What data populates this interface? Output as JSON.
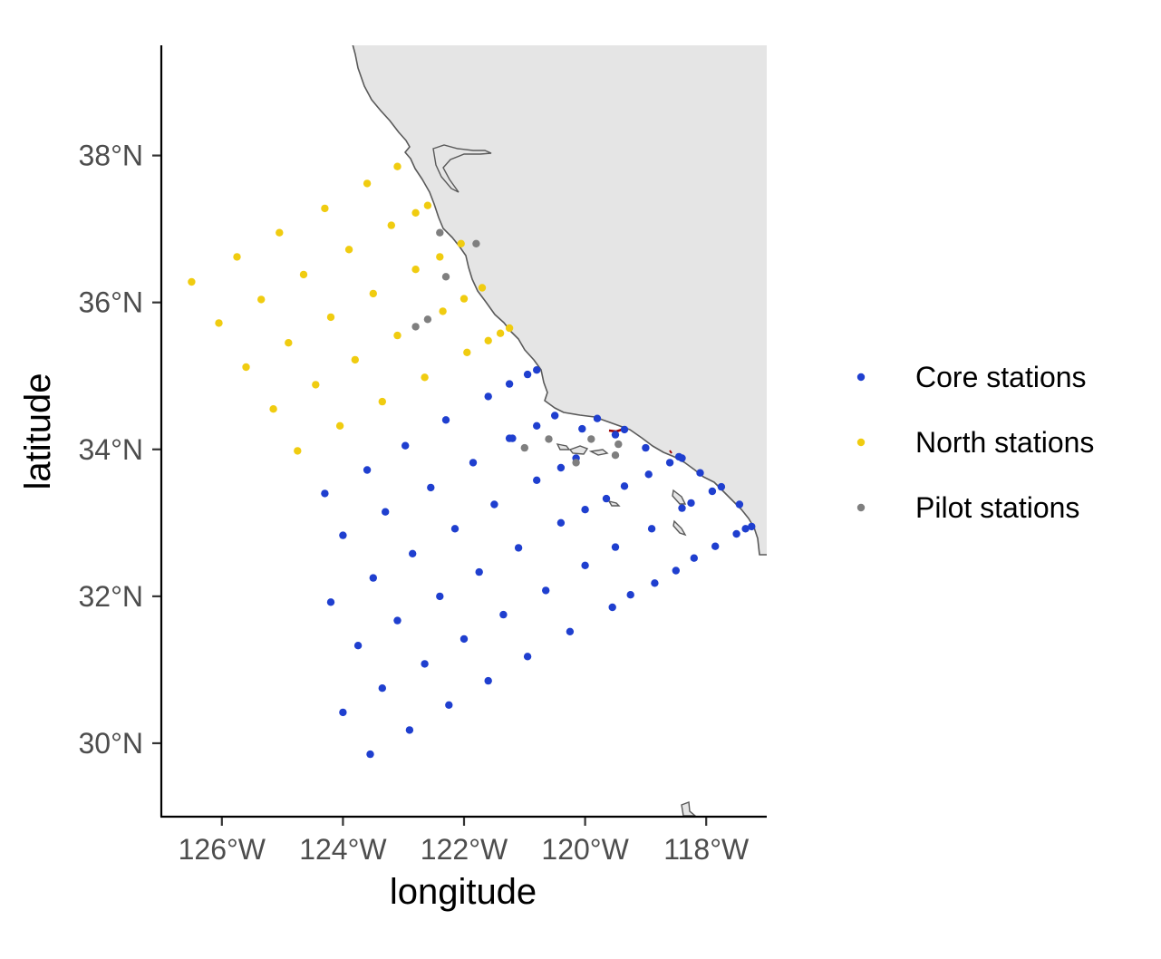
{
  "chart_data": {
    "type": "scatter",
    "xlabel": "longitude",
    "ylabel": "latitude",
    "xlim": [
      -127.0,
      -117.0
    ],
    "ylim": [
      29.0,
      39.5
    ],
    "x_ticks": [
      {
        "value": -126,
        "label": "126°W"
      },
      {
        "value": -124,
        "label": "124°W"
      },
      {
        "value": -122,
        "label": "122°W"
      },
      {
        "value": -120,
        "label": "120°W"
      },
      {
        "value": -118,
        "label": "118°W"
      }
    ],
    "y_ticks": [
      {
        "value": 30,
        "label": "30°N"
      },
      {
        "value": 32,
        "label": "32°N"
      },
      {
        "value": 34,
        "label": "34°N"
      },
      {
        "value": 36,
        "label": "36°N"
      },
      {
        "value": 38,
        "label": "38°N"
      }
    ],
    "grid": false,
    "legend_position": "right",
    "land_color": "#e5e5e5",
    "coast_color": "#595959",
    "series": [
      {
        "name": "Core stations",
        "color": "#1f3fcf",
        "points": [
          [
            -120.8,
            35.08
          ],
          [
            -120.95,
            35.02
          ],
          [
            -121.25,
            34.89
          ],
          [
            -121.6,
            34.72
          ],
          [
            -122.3,
            34.4
          ],
          [
            -122.97,
            34.05
          ],
          [
            -123.6,
            33.72
          ],
          [
            -124.3,
            33.4
          ],
          [
            -124.0,
            32.83
          ],
          [
            -123.3,
            33.15
          ],
          [
            -122.55,
            33.48
          ],
          [
            -121.85,
            33.82
          ],
          [
            -121.2,
            34.15
          ],
          [
            -120.8,
            34.32
          ],
          [
            -120.5,
            34.46
          ],
          [
            -120.8,
            33.58
          ],
          [
            -121.5,
            33.25
          ],
          [
            -122.15,
            32.92
          ],
          [
            -122.85,
            32.58
          ],
          [
            -123.5,
            32.25
          ],
          [
            -124.2,
            31.92
          ],
          [
            -123.75,
            31.33
          ],
          [
            -123.1,
            31.67
          ],
          [
            -122.4,
            32.0
          ],
          [
            -121.75,
            32.33
          ],
          [
            -121.1,
            32.66
          ],
          [
            -120.4,
            33.0
          ],
          [
            -120.0,
            33.18
          ],
          [
            -119.65,
            33.33
          ],
          [
            -119.35,
            33.5
          ],
          [
            -118.95,
            33.66
          ],
          [
            -118.6,
            33.82
          ],
          [
            -118.45,
            33.9
          ],
          [
            -118.9,
            32.92
          ],
          [
            -119.5,
            32.67
          ],
          [
            -120.0,
            32.42
          ],
          [
            -120.65,
            32.08
          ],
          [
            -121.35,
            31.75
          ],
          [
            -122.0,
            31.42
          ],
          [
            -122.65,
            31.08
          ],
          [
            -123.35,
            30.75
          ],
          [
            -124.0,
            30.42
          ],
          [
            -123.55,
            29.85
          ],
          [
            -122.9,
            30.18
          ],
          [
            -122.25,
            30.52
          ],
          [
            -121.6,
            30.85
          ],
          [
            -120.95,
            31.18
          ],
          [
            -120.25,
            31.52
          ],
          [
            -119.55,
            31.85
          ],
          [
            -119.25,
            32.02
          ],
          [
            -118.85,
            32.18
          ],
          [
            -118.5,
            32.35
          ],
          [
            -118.2,
            32.52
          ],
          [
            -117.85,
            32.68
          ],
          [
            -117.5,
            32.85
          ],
          [
            -117.35,
            32.92
          ],
          [
            -117.25,
            32.95
          ],
          [
            -118.4,
            33.2
          ],
          [
            -118.25,
            33.27
          ],
          [
            -117.9,
            33.43
          ],
          [
            -117.75,
            33.49
          ],
          [
            -117.45,
            33.25
          ],
          [
            -118.1,
            33.68
          ],
          [
            -119.0,
            34.02
          ],
          [
            -119.35,
            34.27
          ],
          [
            -119.5,
            34.2
          ],
          [
            -119.8,
            34.42
          ],
          [
            -120.05,
            34.28
          ],
          [
            -120.4,
            33.75
          ],
          [
            -121.25,
            34.15
          ],
          [
            -120.15,
            33.88
          ],
          [
            -118.4,
            33.88
          ]
        ]
      },
      {
        "name": "North stations",
        "color": "#f0cc10",
        "points": [
          [
            -123.1,
            37.85
          ],
          [
            -123.6,
            37.62
          ],
          [
            -124.3,
            37.28
          ],
          [
            -125.05,
            36.95
          ],
          [
            -125.75,
            36.62
          ],
          [
            -126.5,
            36.28
          ],
          [
            -126.05,
            35.72
          ],
          [
            -125.35,
            36.04
          ],
          [
            -124.65,
            36.38
          ],
          [
            -123.9,
            36.72
          ],
          [
            -123.2,
            37.05
          ],
          [
            -122.8,
            37.22
          ],
          [
            -122.6,
            37.32
          ],
          [
            -125.6,
            35.12
          ],
          [
            -124.9,
            35.45
          ],
          [
            -124.2,
            35.8
          ],
          [
            -123.5,
            36.12
          ],
          [
            -122.8,
            36.45
          ],
          [
            -122.4,
            36.62
          ],
          [
            -122.05,
            36.8
          ],
          [
            -125.15,
            34.55
          ],
          [
            -124.45,
            34.88
          ],
          [
            -123.8,
            35.22
          ],
          [
            -123.1,
            35.55
          ],
          [
            -122.35,
            35.88
          ],
          [
            -122.0,
            36.05
          ],
          [
            -121.7,
            36.2
          ],
          [
            -124.75,
            33.98
          ],
          [
            -124.05,
            34.32
          ],
          [
            -123.35,
            34.65
          ],
          [
            -122.65,
            34.98
          ],
          [
            -121.95,
            35.32
          ],
          [
            -121.6,
            35.48
          ],
          [
            -121.4,
            35.58
          ],
          [
            -121.25,
            35.65
          ]
        ]
      },
      {
        "name": "Pilot stations",
        "color": "#7f7f7f",
        "points": [
          [
            -122.4,
            36.95
          ],
          [
            -121.8,
            36.8
          ],
          [
            -122.3,
            36.35
          ],
          [
            -122.6,
            35.77
          ],
          [
            -122.8,
            35.67
          ],
          [
            -121.0,
            34.02
          ],
          [
            -120.6,
            34.14
          ],
          [
            -120.15,
            33.82
          ],
          [
            -119.9,
            34.14
          ],
          [
            -119.45,
            34.07
          ],
          [
            -119.5,
            33.92
          ]
        ]
      }
    ]
  }
}
